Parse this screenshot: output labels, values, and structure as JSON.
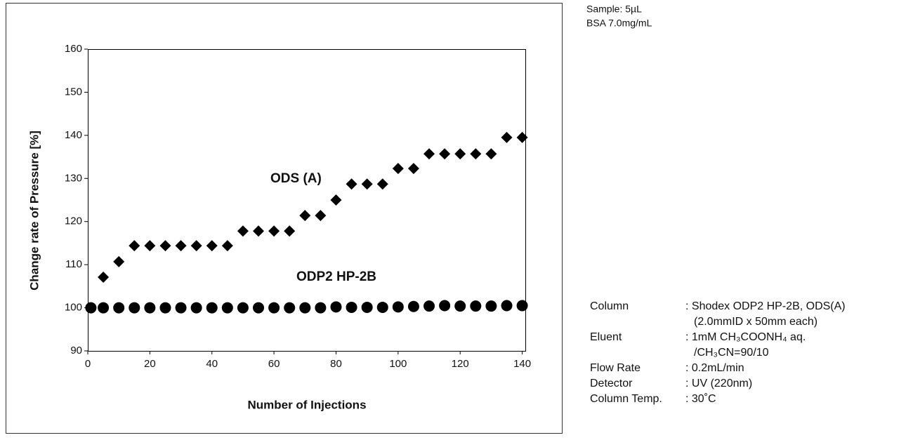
{
  "chart_data": {
    "type": "scatter",
    "x_label": "Number of Injections",
    "y_label": "Change rate of Pressure [%]",
    "xlim": [
      0,
      141
    ],
    "xticks": [
      0,
      20,
      40,
      60,
      80,
      100,
      120,
      140
    ],
    "ylim": [
      90,
      160
    ],
    "yticks": [
      90,
      100,
      110,
      120,
      130,
      140,
      150,
      160
    ],
    "x": [
      1,
      5,
      10,
      15,
      20,
      25,
      30,
      35,
      40,
      45,
      50,
      55,
      60,
      65,
      70,
      75,
      80,
      85,
      90,
      95,
      100,
      105,
      110,
      115,
      120,
      125,
      130,
      135,
      140
    ],
    "series": [
      {
        "name": "ODS (A)",
        "color": "#000000",
        "marker": "diamond",
        "values": [
          100,
          107.1,
          110.7,
          114.4,
          114.4,
          114.4,
          114.4,
          114.4,
          114.4,
          114.4,
          117.8,
          117.8,
          117.8,
          117.8,
          121.4,
          121.4,
          125.0,
          128.7,
          128.7,
          128.7,
          132.3,
          132.3,
          135.7,
          135.7,
          135.7,
          135.7,
          135.7,
          139.5,
          139.5
        ]
      },
      {
        "name": "ODP2 HP-2B",
        "color": "#000000",
        "marker": "circle",
        "values": [
          100,
          100,
          100,
          100,
          100,
          100,
          100,
          100,
          100,
          100,
          100,
          100,
          100,
          100,
          100,
          100,
          100.2,
          100.1,
          100.1,
          100.1,
          100.2,
          100.3,
          100.4,
          100.5,
          100.4,
          100.4,
          100.4,
          100.5,
          100.5
        ]
      }
    ]
  },
  "sample": [
    "Sample: 5µL",
    "BSA   7.0mg/mL"
  ],
  "conditions": [
    {
      "label": "Column",
      "lines": [
        ": Shodex ODP2 HP-2B, ODS(A)",
        "(2.0mmID x 50mm each)"
      ]
    },
    {
      "label": "Eluent",
      "lines": [
        ": 1mM CH₃COONH₄ aq.",
        "/CH₃CN=90/10"
      ]
    },
    {
      "label": "Flow Rate",
      "lines": [
        ": 0.2mL/min"
      ]
    },
    {
      "label": "Detector",
      "lines": [
        ": UV (220nm)"
      ]
    },
    {
      "label": "Column Temp.",
      "lines": [
        ": 30˚C"
      ]
    }
  ]
}
